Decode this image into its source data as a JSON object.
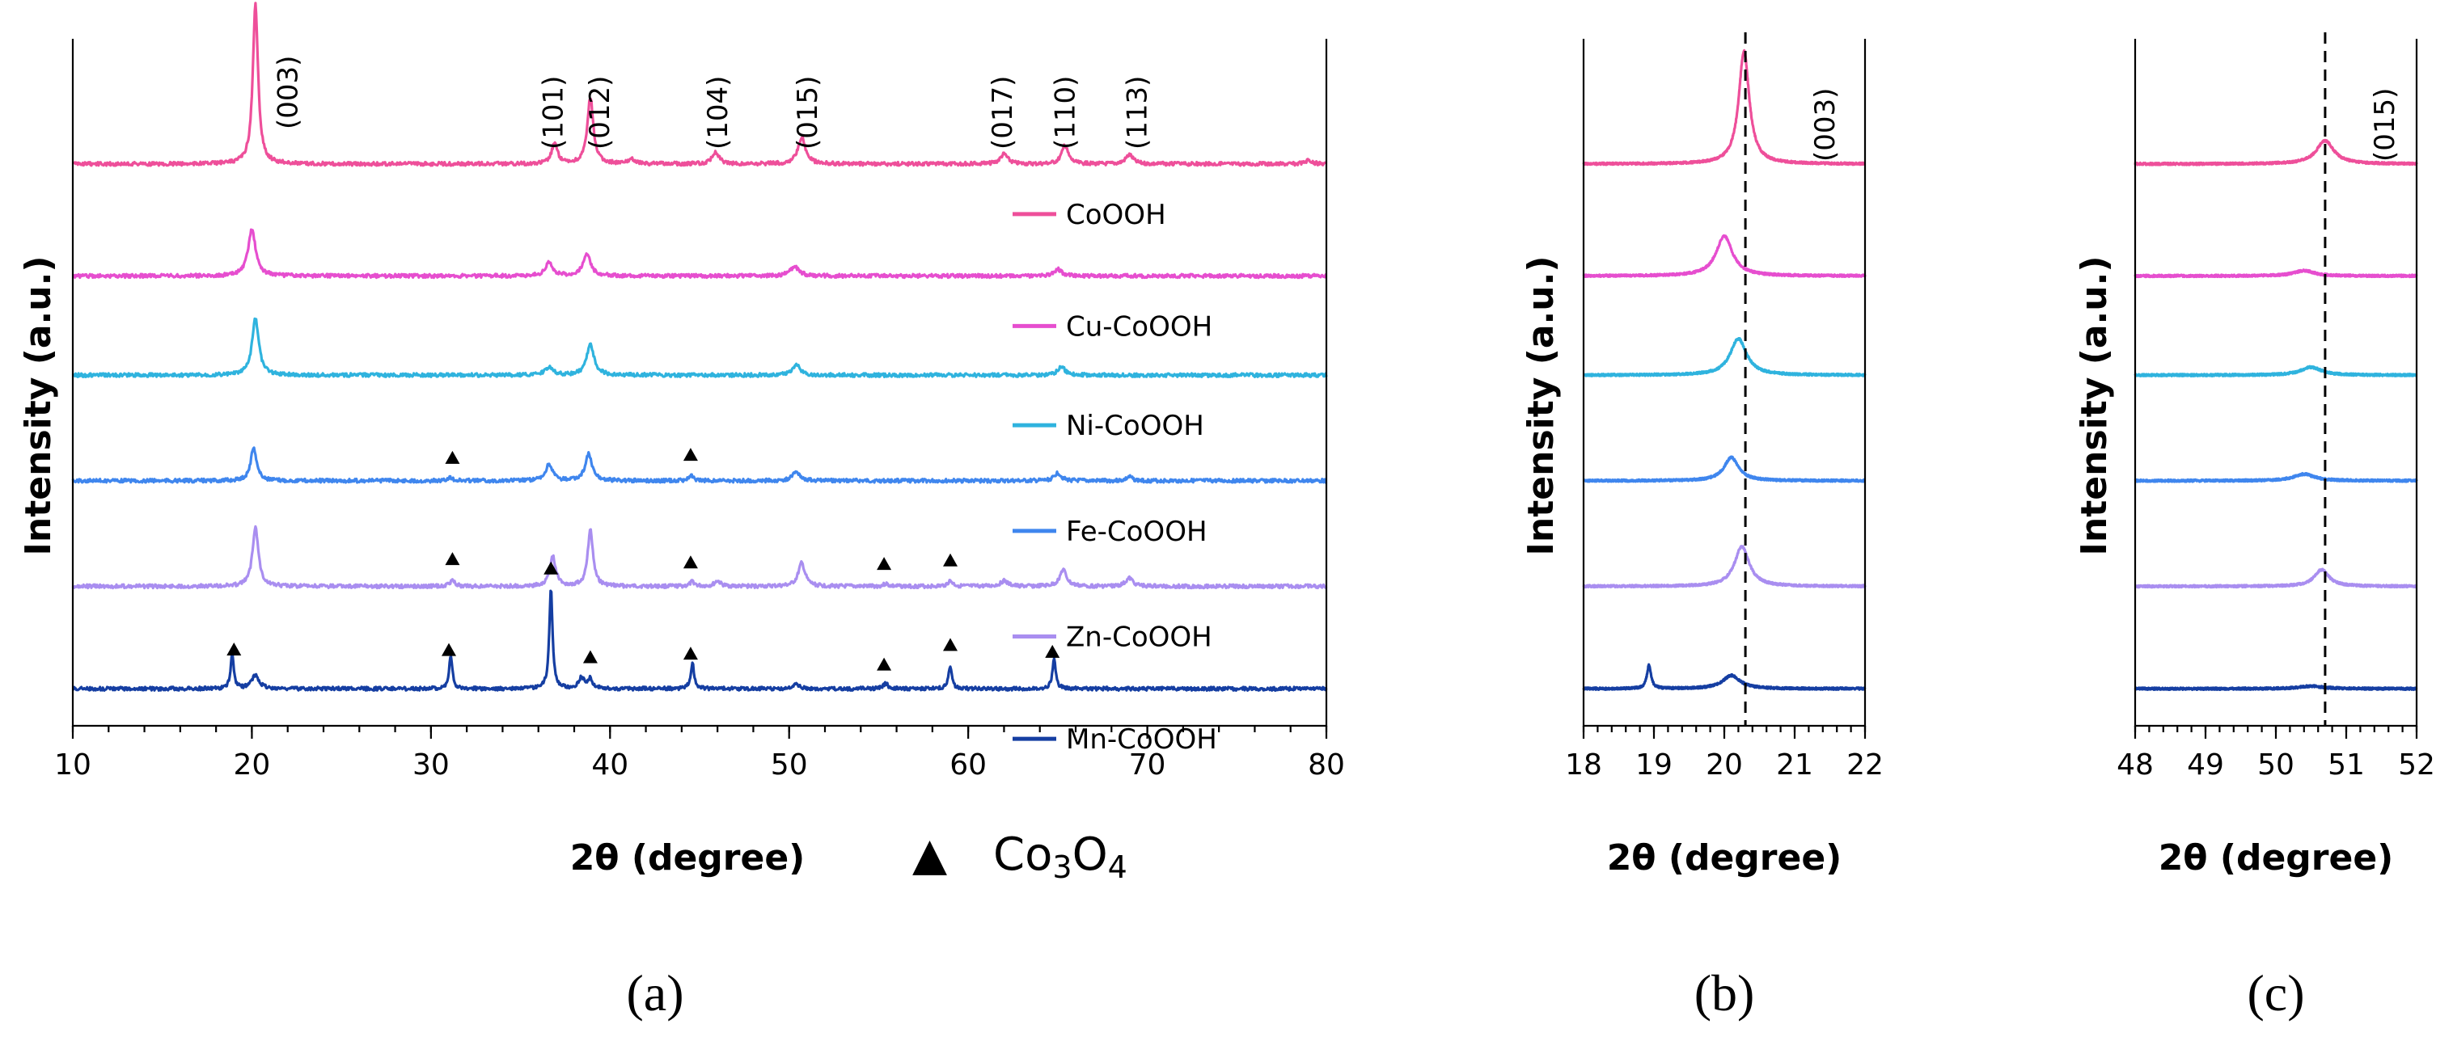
{
  "chart_data": [
    {
      "type": "line",
      "panel_label": "(a)",
      "xlabel": "2θ (degree)",
      "ylabel": "Intensity (a.u.)",
      "xlim": [
        10,
        80
      ],
      "xticks": [
        "10",
        "20",
        "30",
        "40",
        "50",
        "60",
        "70",
        "80"
      ],
      "legend_note": {
        "symbol": "▲",
        "label_main": "Co",
        "sub1": "3",
        "label_mid": "O",
        "sub2": "4"
      },
      "series": [
        {
          "name": "CoOOH",
          "color": "#ee4f9a",
          "baseline_frac": 0.84,
          "peaks": [
            [
              20.2,
              0.24,
              0.35
            ],
            [
              36.9,
              0.03,
              0.4
            ],
            [
              38.9,
              0.1,
              0.4
            ],
            [
              41.2,
              0.008,
              0.4
            ],
            [
              45.9,
              0.018,
              0.45
            ],
            [
              50.7,
              0.04,
              0.5
            ],
            [
              62.0,
              0.015,
              0.5
            ],
            [
              65.4,
              0.027,
              0.45
            ],
            [
              69.0,
              0.014,
              0.5
            ],
            [
              79.0,
              0.006,
              0.4
            ]
          ]
        },
        {
          "name": "Cu-CoOOH",
          "color": "#e64ecf",
          "baseline_frac": 0.665,
          "peaks": [
            [
              20.0,
              0.07,
              0.5
            ],
            [
              36.6,
              0.02,
              0.5
            ],
            [
              38.7,
              0.034,
              0.5
            ],
            [
              50.3,
              0.014,
              0.6
            ],
            [
              65.0,
              0.01,
              0.5
            ]
          ]
        },
        {
          "name": "Ni-CoOOH",
          "color": "#2fb3de",
          "baseline_frac": 0.51,
          "peaks": [
            [
              20.2,
              0.085,
              0.45
            ],
            [
              36.6,
              0.012,
              0.5
            ],
            [
              38.9,
              0.045,
              0.5
            ],
            [
              50.4,
              0.016,
              0.5
            ],
            [
              65.2,
              0.014,
              0.45
            ]
          ]
        },
        {
          "name": "Fe-CoOOH",
          "color": "#3f86ee",
          "baseline_frac": 0.345,
          "peaks": [
            [
              20.1,
              0.05,
              0.4
            ],
            [
              31.1,
              0.005,
              0.3
            ],
            [
              36.6,
              0.025,
              0.45
            ],
            [
              38.8,
              0.04,
              0.45
            ],
            [
              44.5,
              0.008,
              0.3
            ],
            [
              50.4,
              0.014,
              0.5
            ],
            [
              65.0,
              0.012,
              0.45
            ],
            [
              69.0,
              0.006,
              0.4
            ]
          ]
        },
        {
          "name": "Zn-CoOOH",
          "color": "#a98ef0",
          "baseline_frac": 0.18,
          "peaks": [
            [
              20.2,
              0.09,
              0.4
            ],
            [
              31.2,
              0.01,
              0.3
            ],
            [
              36.8,
              0.045,
              0.4
            ],
            [
              38.9,
              0.085,
              0.35
            ],
            [
              44.6,
              0.007,
              0.3
            ],
            [
              46.0,
              0.008,
              0.4
            ],
            [
              50.7,
              0.035,
              0.45
            ],
            [
              55.4,
              0.004,
              0.3
            ],
            [
              59.0,
              0.008,
              0.35
            ],
            [
              62.0,
              0.008,
              0.5
            ],
            [
              65.3,
              0.025,
              0.45
            ],
            [
              69.0,
              0.012,
              0.5
            ]
          ]
        },
        {
          "name": "Mn-CoOOH",
          "color": "#153ea2",
          "baseline_frac": 0.02,
          "peaks": [
            [
              18.9,
              0.05,
              0.22
            ],
            [
              20.2,
              0.02,
              0.5
            ],
            [
              31.1,
              0.05,
              0.22
            ],
            [
              36.7,
              0.15,
              0.22
            ],
            [
              38.4,
              0.016,
              0.4
            ],
            [
              38.9,
              0.014,
              0.3
            ],
            [
              44.6,
              0.04,
              0.22
            ],
            [
              50.4,
              0.006,
              0.4
            ],
            [
              55.4,
              0.008,
              0.3
            ],
            [
              59.0,
              0.035,
              0.22
            ],
            [
              64.8,
              0.045,
              0.22
            ]
          ]
        }
      ],
      "hkl_labels": [
        {
          "label": "(003)",
          "x": 22.0
        },
        {
          "label": "(101)",
          "x": 36.8
        },
        {
          "label": "(012)",
          "x": 39.4
        },
        {
          "label": "(104)",
          "x": 46.0
        },
        {
          "label": "(015)",
          "x": 51.0
        },
        {
          "label": "(017)",
          "x": 61.9
        },
        {
          "label": "(110)",
          "x": 65.4
        },
        {
          "label": "(113)",
          "x": 69.4
        }
      ],
      "co3o4_markers": [
        {
          "series": "Fe-CoOOH",
          "x": [
            31.2,
            44.5
          ]
        },
        {
          "series": "Zn-CoOOH",
          "x": [
            31.2,
            44.5,
            55.3,
            59.0
          ]
        },
        {
          "series": "Mn-CoOOH",
          "x": [
            19.0,
            31.0,
            36.7,
            38.9,
            44.5,
            55.3,
            59.0,
            64.7
          ]
        }
      ]
    },
    {
      "type": "line",
      "panel_label": "(b)",
      "xlabel": "2θ (degree)",
      "ylabel": "Intensity (a.u.)",
      "xlim": [
        18,
        22
      ],
      "xticks": [
        "18",
        "19",
        "20",
        "21",
        "22"
      ],
      "reference_line": 20.3,
      "hkl_label": "(003)",
      "series": [
        {
          "name": "CoOOH",
          "color": "#ee4f9a",
          "baseline_frac": 0.84,
          "peaks": [
            [
              20.28,
              0.17,
              0.18
            ]
          ]
        },
        {
          "name": "Cu-CoOOH",
          "color": "#e64ecf",
          "baseline_frac": 0.665,
          "peaks": [
            [
              20.0,
              0.06,
              0.28
            ]
          ]
        },
        {
          "name": "Ni-CoOOH",
          "color": "#2fb3de",
          "baseline_frac": 0.51,
          "peaks": [
            [
              20.2,
              0.055,
              0.28
            ]
          ]
        },
        {
          "name": "Fe-CoOOH",
          "color": "#3f86ee",
          "baseline_frac": 0.345,
          "peaks": [
            [
              20.1,
              0.035,
              0.25
            ]
          ]
        },
        {
          "name": "Zn-CoOOH",
          "color": "#a98ef0",
          "baseline_frac": 0.18,
          "peaks": [
            [
              20.25,
              0.06,
              0.25
            ]
          ]
        },
        {
          "name": "Mn-CoOOH",
          "color": "#153ea2",
          "baseline_frac": 0.02,
          "peaks": [
            [
              18.93,
              0.035,
              0.07
            ],
            [
              20.1,
              0.02,
              0.3
            ]
          ]
        }
      ]
    },
    {
      "type": "line",
      "panel_label": "(c)",
      "xlabel": "2θ (degree)",
      "ylabel": "Intensity (a.u.)",
      "xlim": [
        48,
        52
      ],
      "xticks": [
        "48",
        "49",
        "50",
        "51",
        "52"
      ],
      "reference_line": 50.7,
      "hkl_label": "(015)",
      "series": [
        {
          "name": "CoOOH",
          "color": "#ee4f9a",
          "baseline_frac": 0.84,
          "peaks": [
            [
              50.7,
              0.035,
              0.3
            ]
          ]
        },
        {
          "name": "Cu-CoOOH",
          "color": "#e64ecf",
          "baseline_frac": 0.665,
          "peaks": [
            [
              50.4,
              0.008,
              0.35
            ]
          ]
        },
        {
          "name": "Ni-CoOOH",
          "color": "#2fb3de",
          "baseline_frac": 0.51,
          "peaks": [
            [
              50.5,
              0.012,
              0.35
            ]
          ]
        },
        {
          "name": "Fe-CoOOH",
          "color": "#3f86ee",
          "baseline_frac": 0.345,
          "peaks": [
            [
              50.4,
              0.01,
              0.35
            ]
          ]
        },
        {
          "name": "Zn-CoOOH",
          "color": "#a98ef0",
          "baseline_frac": 0.18,
          "peaks": [
            [
              50.65,
              0.025,
              0.25
            ]
          ]
        },
        {
          "name": "Mn-CoOOH",
          "color": "#153ea2",
          "baseline_frac": 0.02,
          "peaks": [
            [
              50.5,
              0.004,
              0.4
            ]
          ]
        }
      ]
    }
  ]
}
